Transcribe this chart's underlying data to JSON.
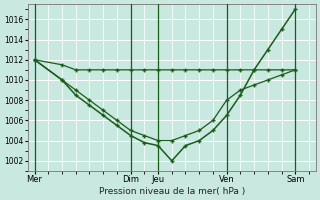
{
  "bg_color": "#c8e8e0",
  "grid_color": "#ffffff",
  "grid_minor_color": "#ddeee8",
  "line_color": "#1a5c1a",
  "xlabel": "Pression niveau de la mer( hPa )",
  "x_ticks_labels": [
    "Mer",
    "Dim",
    "Jeu",
    "Ven",
    "Sam"
  ],
  "x_ticks_pos": [
    0,
    7,
    9,
    14,
    19
  ],
  "ylim": [
    1001.0,
    1017.5
  ],
  "yticks": [
    1002,
    1004,
    1006,
    1008,
    1010,
    1012,
    1014,
    1016
  ],
  "xlim": [
    -0.5,
    20.5
  ],
  "vlines_x": [
    0,
    7,
    9,
    14,
    19
  ],
  "series1_x": [
    0,
    2,
    3,
    4,
    5,
    6,
    7,
    8,
    9,
    10,
    11,
    12,
    13,
    14,
    15,
    16,
    17,
    18,
    19
  ],
  "series1_y": [
    1012,
    1011.5,
    1011,
    1011,
    1011,
    1011,
    1011,
    1011,
    1011,
    1011,
    1011,
    1011,
    1011,
    1011,
    1011,
    1011,
    1011,
    1011,
    1011
  ],
  "series2_x": [
    0,
    2,
    3,
    4,
    5,
    6,
    7,
    8,
    9,
    10,
    11,
    12,
    13,
    14,
    15,
    16,
    17,
    18,
    19
  ],
  "series2_y": [
    1012,
    1010,
    1009,
    1008,
    1007,
    1006,
    1005,
    1004.5,
    1004,
    1004,
    1004.5,
    1005,
    1006,
    1008,
    1009,
    1009.5,
    1010,
    1010.5,
    1011
  ],
  "series3_x": [
    0,
    2,
    3,
    4,
    5,
    6,
    7,
    8,
    9,
    10,
    11,
    12,
    13,
    14,
    15,
    16,
    17,
    18,
    19
  ],
  "series3_y": [
    1012,
    1010,
    1008.5,
    1007.5,
    1006.5,
    1005.5,
    1004.5,
    1003.8,
    1003.5,
    1002,
    1003.5,
    1004,
    1005,
    1006.5,
    1008.5,
    1011,
    1013,
    1015,
    1017
  ]
}
